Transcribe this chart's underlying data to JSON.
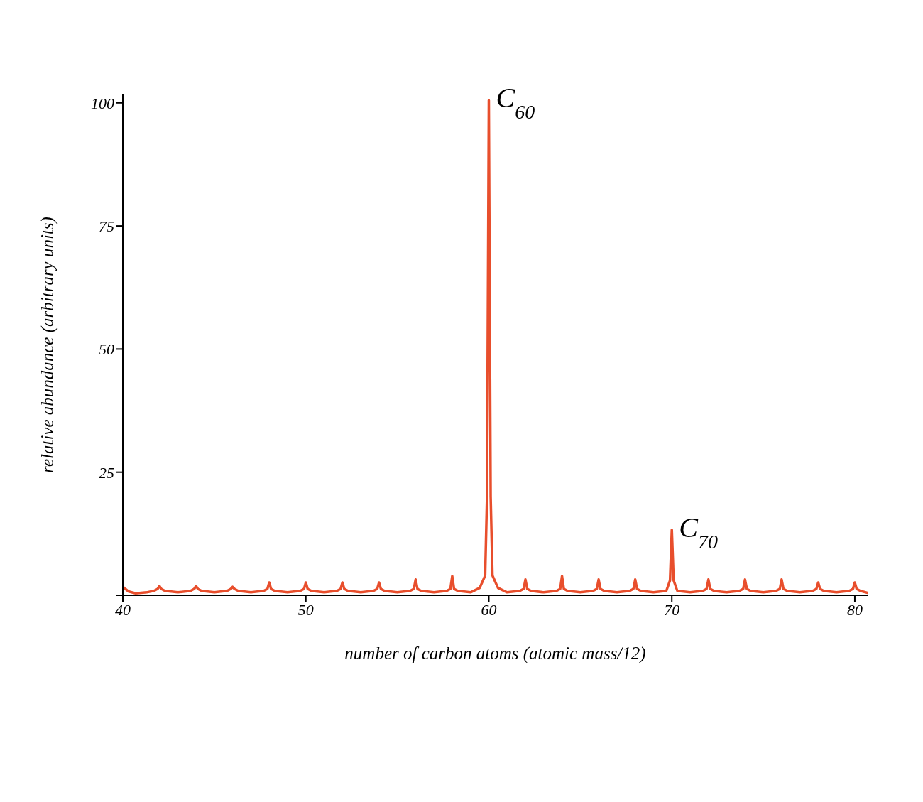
{
  "chart_data": {
    "type": "line",
    "xlabel": "number of carbon atoms (atomic mass/12)",
    "ylabel": "relative abundance (arbitrary units)",
    "xlim": [
      40,
      80.7
    ],
    "xticks": [
      40,
      50,
      60,
      70,
      80
    ],
    "ylim": [
      0,
      101.7
    ],
    "yticks": [
      {
        "value": 0,
        "label": null
      },
      25,
      50,
      75,
      100
    ],
    "marker": "none",
    "line_style": "solid",
    "annotations": [
      {
        "text": "C$_{60}$",
        "x": 60,
        "y": 100.5
      },
      {
        "text": "C$_{70}$",
        "x": 70,
        "y": 13.3
      }
    ],
    "series": [
      {
        "color": "#e84e2c",
        "x": [
          40,
          40.3,
          40.7,
          41.3,
          41.7,
          41.9,
          42,
          42.1,
          42.3,
          43,
          43.7,
          43.9,
          44,
          44.1,
          44.3,
          45,
          45.7,
          45.9,
          46,
          46.1,
          46.3,
          47,
          47.7,
          47.9,
          48,
          48.1,
          48.3,
          49,
          49.7,
          49.9,
          50,
          50.1,
          50.3,
          51,
          51.7,
          51.9,
          52,
          52.1,
          52.3,
          53,
          53.7,
          53.9,
          54,
          54.1,
          54.3,
          55,
          55.7,
          55.9,
          56,
          56.1,
          56.3,
          57,
          57.7,
          57.9,
          58,
          58.1,
          58.3,
          59,
          59.5,
          59.8,
          59.9,
          60,
          60.1,
          60.2,
          60.5,
          61,
          61.7,
          61.9,
          62,
          62.1,
          62.3,
          63,
          63.7,
          63.9,
          64,
          64.1,
          64.3,
          65,
          65.7,
          65.9,
          66,
          66.1,
          66.3,
          67,
          67.7,
          67.9,
          68,
          68.1,
          68.3,
          69,
          69.7,
          69.9,
          70,
          70.1,
          70.3,
          71,
          71.7,
          71.9,
          72,
          72.1,
          72.3,
          73,
          73.7,
          73.9,
          74,
          74.1,
          74.3,
          75,
          75.7,
          75.9,
          76,
          76.1,
          76.3,
          77,
          77.7,
          77.9,
          78,
          78.1,
          78.3,
          79,
          79.7,
          79.9,
          80,
          80.1,
          80.3,
          80.7
        ],
        "values": [
          1.7,
          0.8,
          0.4,
          0.6,
          0.9,
          1.3,
          1.9,
          1.3,
          0.9,
          0.6,
          0.9,
          1.3,
          1.9,
          1.3,
          0.9,
          0.6,
          0.9,
          1.3,
          1.7,
          1.3,
          0.9,
          0.6,
          0.9,
          1.3,
          2.6,
          1.3,
          0.9,
          0.6,
          0.9,
          1.3,
          2.6,
          1.3,
          0.9,
          0.6,
          0.9,
          1.3,
          2.6,
          1.3,
          0.9,
          0.6,
          0.9,
          1.3,
          2.6,
          1.3,
          0.9,
          0.6,
          0.9,
          1.3,
          3.2,
          1.3,
          0.9,
          0.6,
          0.9,
          1.3,
          3.9,
          1.3,
          0.9,
          0.6,
          1.5,
          4,
          20,
          100.5,
          20,
          4,
          1.5,
          0.6,
          0.9,
          1.3,
          3.2,
          1.3,
          0.9,
          0.6,
          0.9,
          1.3,
          3.9,
          1.3,
          0.9,
          0.6,
          0.9,
          1.3,
          3.2,
          1.3,
          0.9,
          0.6,
          0.9,
          1.3,
          3.2,
          1.3,
          0.9,
          0.6,
          0.9,
          3,
          13.3,
          3,
          0.9,
          0.6,
          0.9,
          1.3,
          3.2,
          1.3,
          0.9,
          0.6,
          0.9,
          1.3,
          3.2,
          1.3,
          0.9,
          0.6,
          0.9,
          1.3,
          3.2,
          1.3,
          0.9,
          0.6,
          0.9,
          1.3,
          2.6,
          1.3,
          0.9,
          0.6,
          0.9,
          1.3,
          2.6,
          1.3,
          0.9,
          0.5
        ]
      }
    ]
  }
}
